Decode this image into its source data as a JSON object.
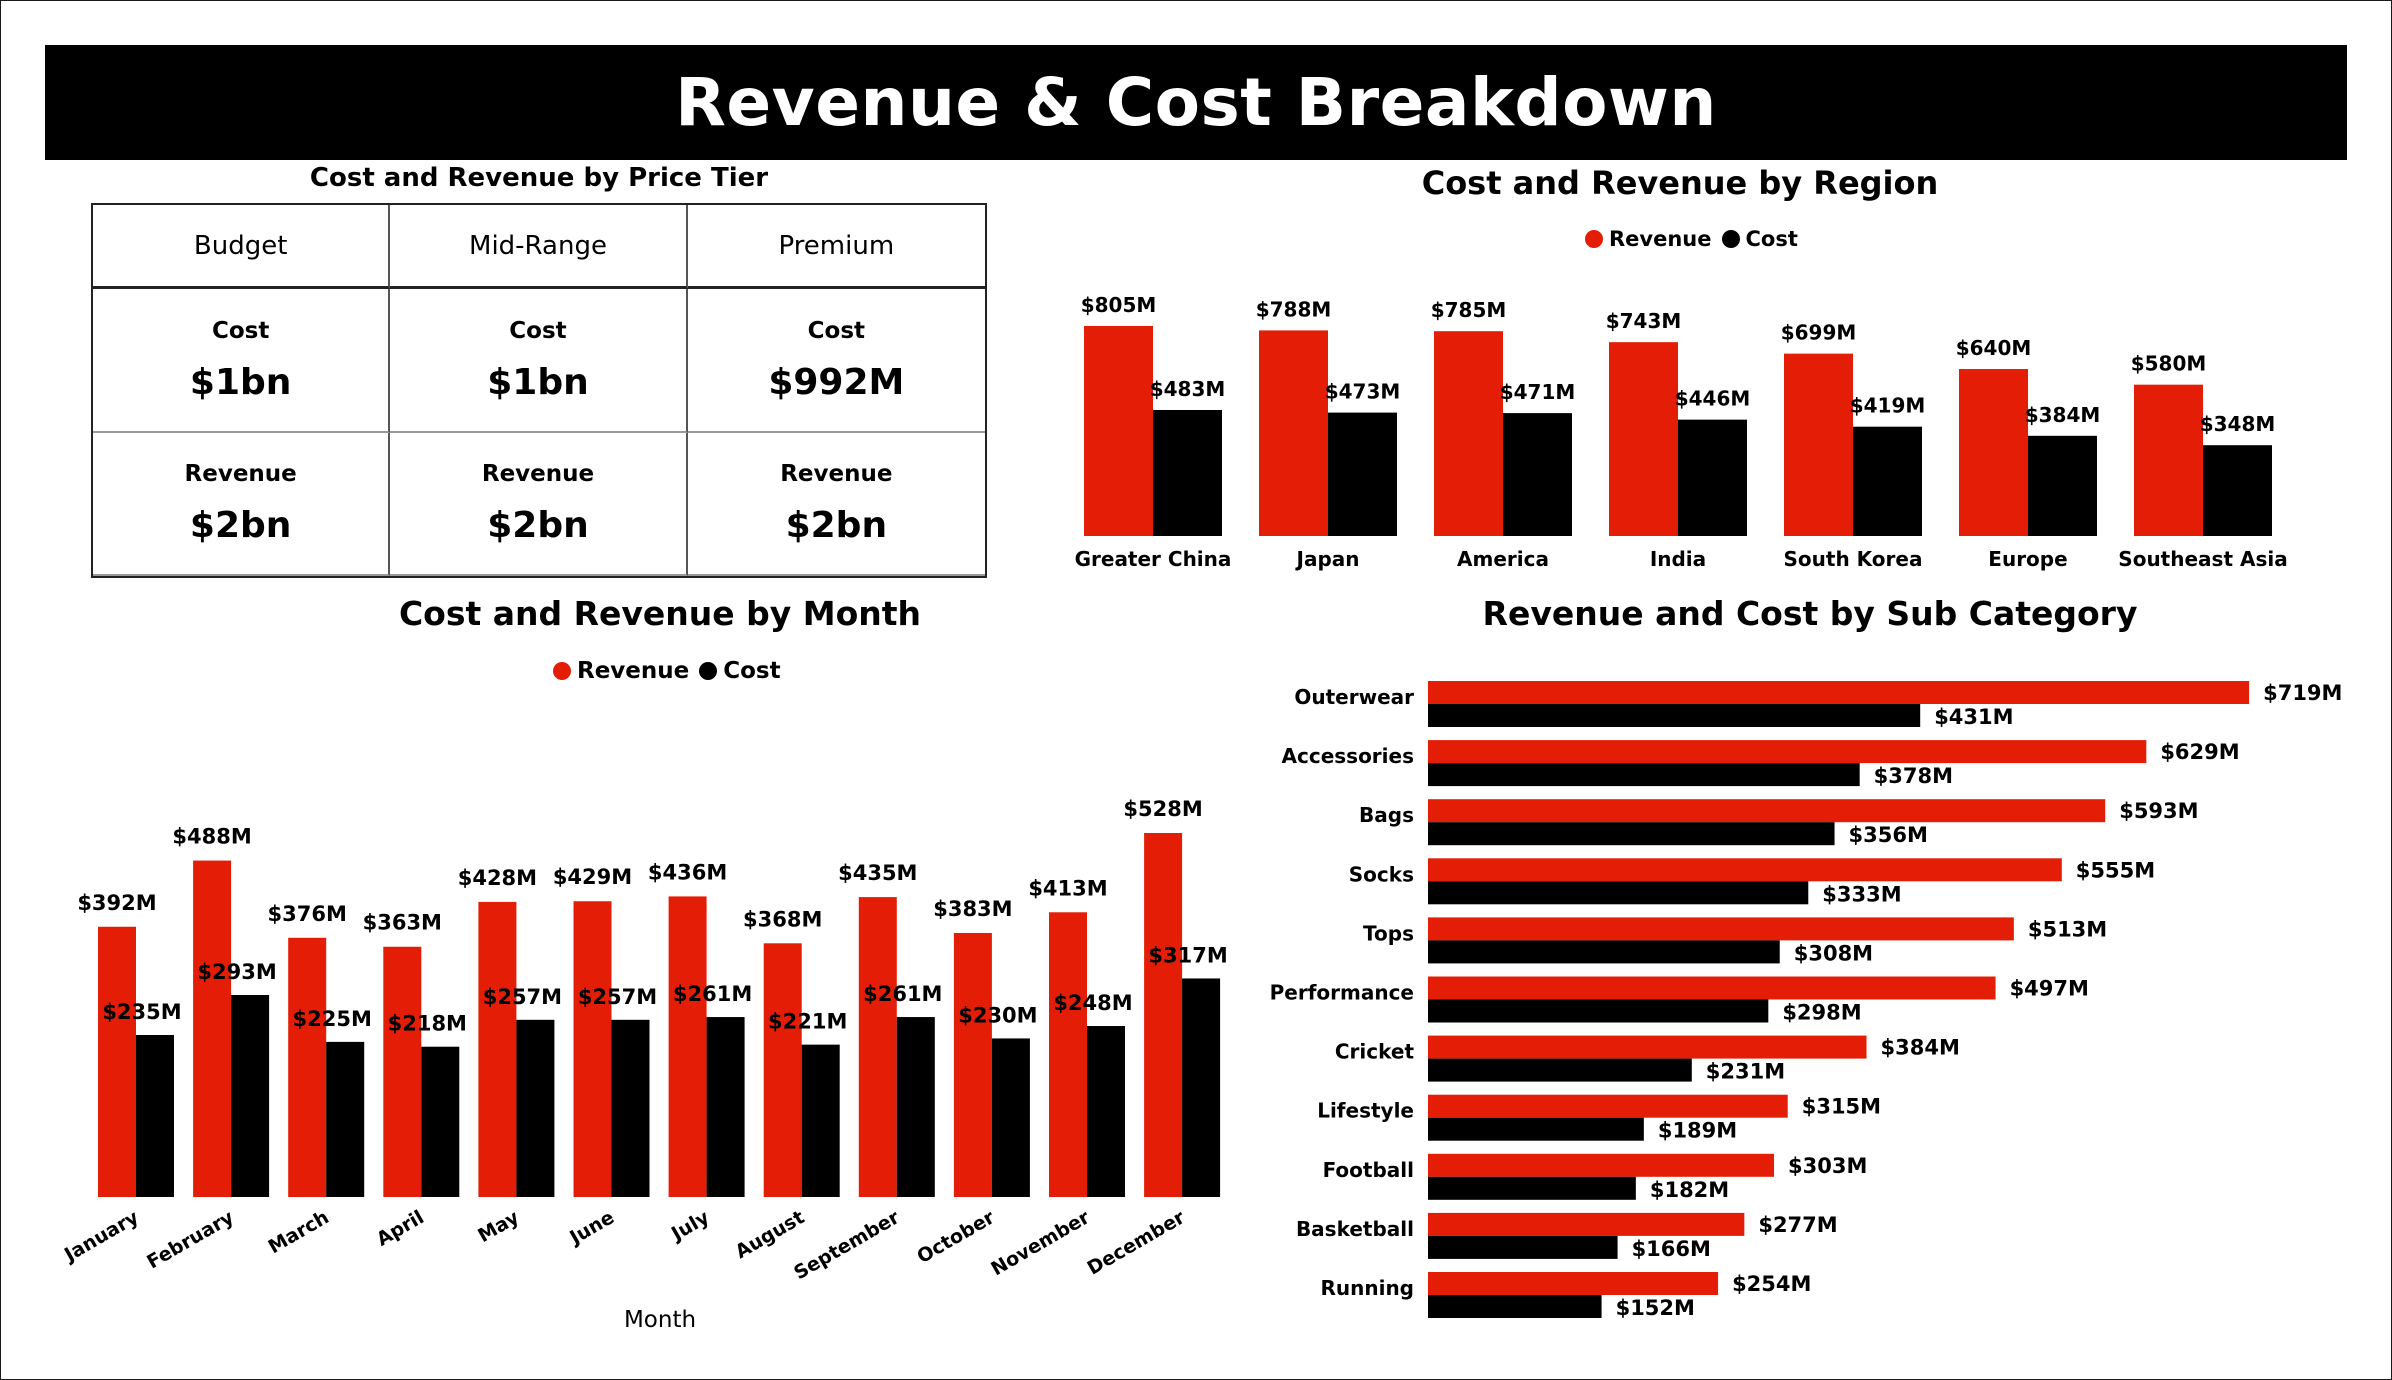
{
  "title": "Revenue & Cost Breakdown",
  "colors": {
    "revenue": "#e41e06",
    "cost": "#000000"
  },
  "price_tier": {
    "title": "Cost and Revenue by Price Tier",
    "cost_label": "Cost",
    "revenue_label": "Revenue",
    "tiers": [
      {
        "name": "Budget",
        "cost": "$1bn",
        "revenue": "$2bn"
      },
      {
        "name": "Mid-Range",
        "cost": "$1bn",
        "revenue": "$2bn"
      },
      {
        "name": "Premium",
        "cost": "$992M",
        "revenue": "$2bn"
      }
    ]
  },
  "legend": {
    "revenue": "Revenue",
    "cost": "Cost"
  },
  "chart_data": [
    {
      "type": "bar",
      "title": "Cost and Revenue by Region",
      "categories": [
        "Greater China",
        "Japan",
        "America",
        "India",
        "South Korea",
        "Europe",
        "Southeast Asia"
      ],
      "series": [
        {
          "name": "Revenue",
          "values": [
            805,
            788,
            785,
            743,
            699,
            640,
            580
          ]
        },
        {
          "name": "Cost",
          "values": [
            483,
            473,
            471,
            446,
            419,
            384,
            348
          ]
        }
      ],
      "unit": "M",
      "legend_position": "top"
    },
    {
      "type": "bar",
      "title": "Cost and Revenue by Month",
      "xlabel": "Month",
      "categories": [
        "January",
        "February",
        "March",
        "April",
        "May",
        "June",
        "July",
        "August",
        "September",
        "October",
        "November",
        "December"
      ],
      "series": [
        {
          "name": "Revenue",
          "values": [
            392,
            488,
            376,
            363,
            428,
            429,
            436,
            368,
            435,
            383,
            413,
            528
          ]
        },
        {
          "name": "Cost",
          "values": [
            235,
            293,
            225,
            218,
            257,
            257,
            261,
            221,
            261,
            230,
            248,
            317
          ]
        }
      ],
      "unit": "M",
      "legend_position": "top"
    },
    {
      "type": "bar",
      "orientation": "horizontal",
      "title": "Revenue and Cost by Sub Category",
      "categories": [
        "Outerwear",
        "Accessories",
        "Bags",
        "Socks",
        "Tops",
        "Performance",
        "Cricket",
        "Lifestyle",
        "Football",
        "Basketball",
        "Running"
      ],
      "series": [
        {
          "name": "Revenue",
          "values": [
            719,
            629,
            593,
            555,
            513,
            497,
            384,
            315,
            303,
            277,
            254
          ]
        },
        {
          "name": "Cost",
          "values": [
            431,
            378,
            356,
            333,
            308,
            298,
            231,
            189,
            182,
            166,
            152
          ]
        }
      ],
      "unit": "M"
    }
  ]
}
